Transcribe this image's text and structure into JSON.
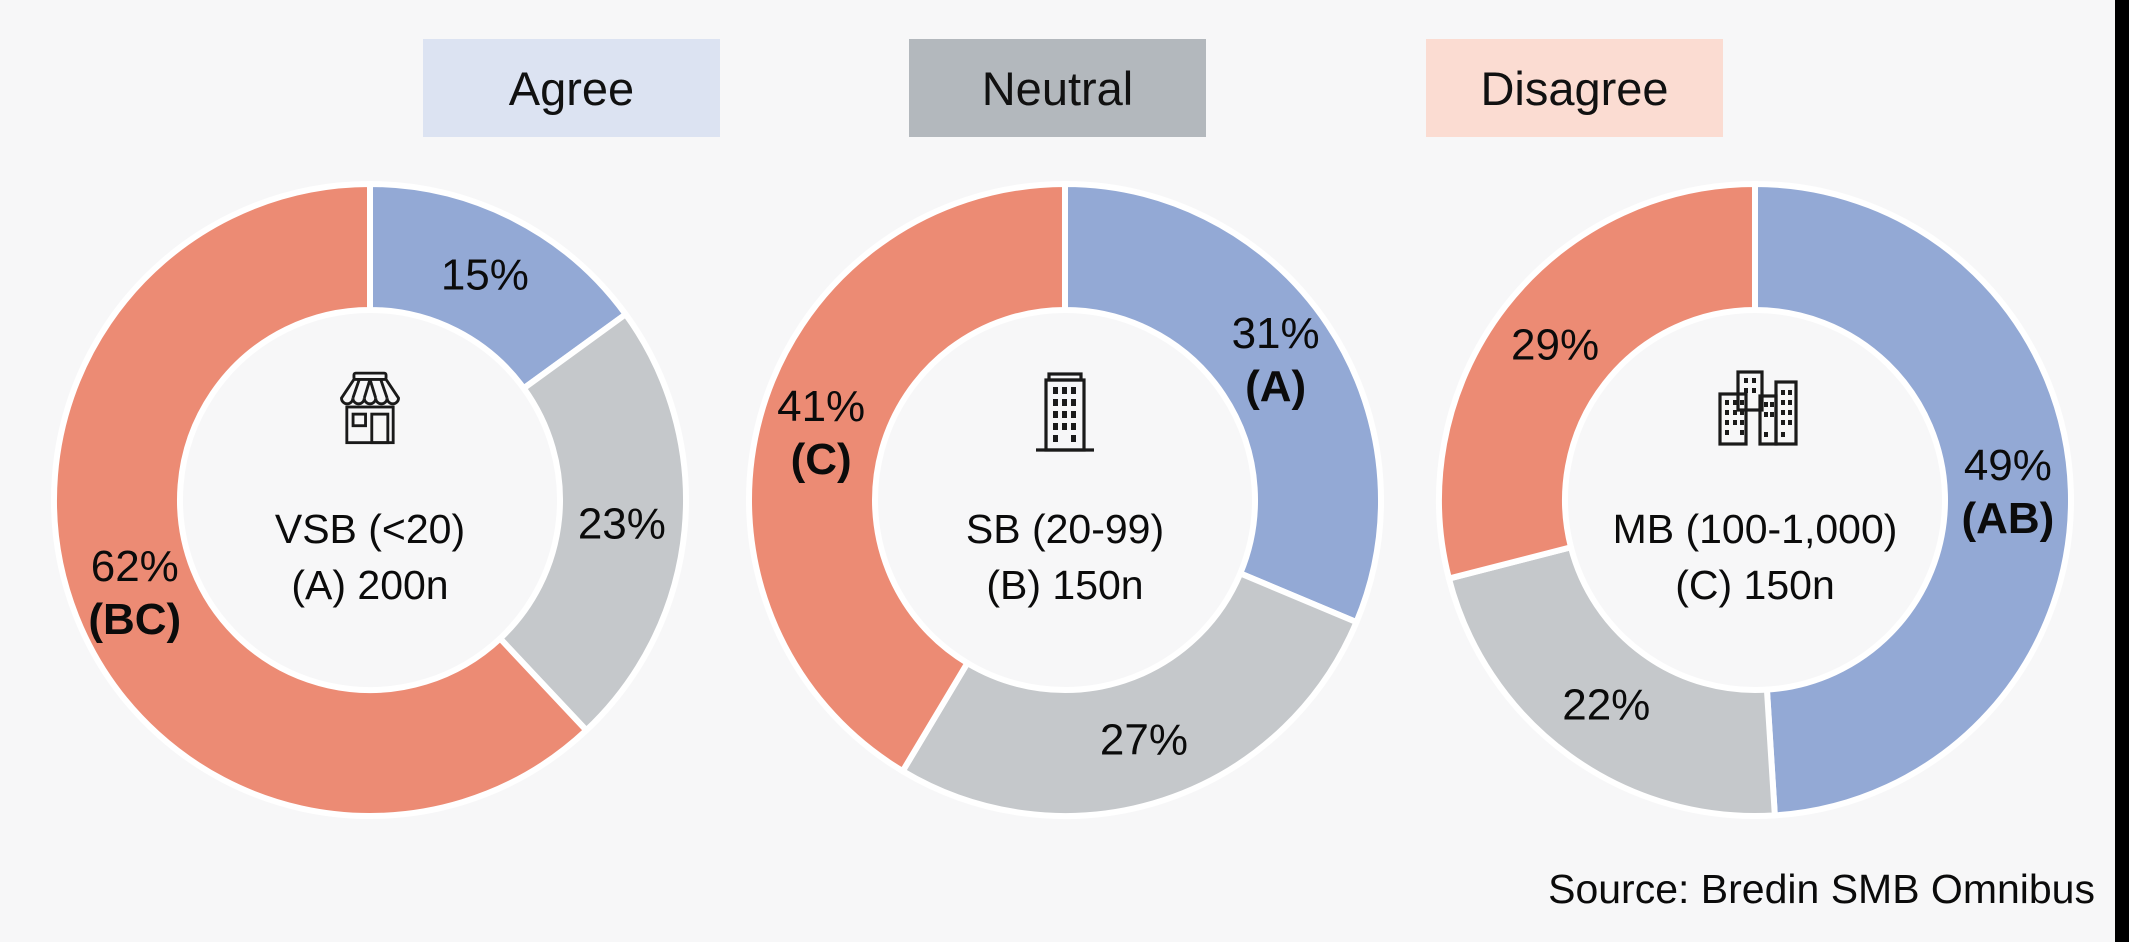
{
  "page": {
    "background": "#f7f7f8",
    "right_edge_bar_color": "#000000"
  },
  "legend": {
    "position": "top",
    "items": [
      {
        "label": "Agree",
        "bg": "#DCE3F2"
      },
      {
        "label": "Neutral",
        "bg": "#B3B8BD"
      },
      {
        "label": "Disagree",
        "bg": "#FBDCD2"
      }
    ]
  },
  "colors": {
    "agree": "#93A9D5",
    "neutral": "#C5C8CB",
    "disagree": "#EC8B74",
    "label_text": "#0b0b0b"
  },
  "source": {
    "text": "Source: Bredin SMB Omnibus"
  },
  "chart_data": [
    {
      "type": "donut",
      "center_icon": "storefront-icon",
      "line1": "VSB (<20)",
      "line2": "(A) 200n",
      "segments": [
        {
          "name": "Agree",
          "value": 15,
          "label": "15%",
          "sig": "",
          "color": "#93A9D5"
        },
        {
          "name": "Neutral",
          "value": 23,
          "label": "23%",
          "sig": "",
          "color": "#C5C8CB"
        },
        {
          "name": "Disagree",
          "value": 62,
          "label": "62%",
          "sig": "(BC)",
          "color": "#EC8B74"
        }
      ]
    },
    {
      "type": "donut",
      "center_icon": "office-building-icon",
      "line1": "SB (20-99)",
      "line2": "(B) 150n",
      "segments": [
        {
          "name": "Agree",
          "value": 31,
          "label": "31%",
          "sig": "(A)",
          "color": "#93A9D5"
        },
        {
          "name": "Neutral",
          "value": 27,
          "label": "27%",
          "sig": "",
          "color": "#C5C8CB"
        },
        {
          "name": "Disagree",
          "value": 41,
          "label": "41%",
          "sig": "(C)",
          "color": "#EC8B74"
        }
      ]
    },
    {
      "type": "donut",
      "center_icon": "city-buildings-icon",
      "line1": "MB (100-1,000)",
      "line2": "(C) 150n",
      "segments": [
        {
          "name": "Agree",
          "value": 49,
          "label": "49%",
          "sig": "(AB)",
          "color": "#93A9D5"
        },
        {
          "name": "Neutral",
          "value": 22,
          "label": "22%",
          "sig": "",
          "color": "#C5C8CB"
        },
        {
          "name": "Disagree",
          "value": 29,
          "label": "29%",
          "sig": "",
          "color": "#EC8B74"
        }
      ]
    }
  ]
}
